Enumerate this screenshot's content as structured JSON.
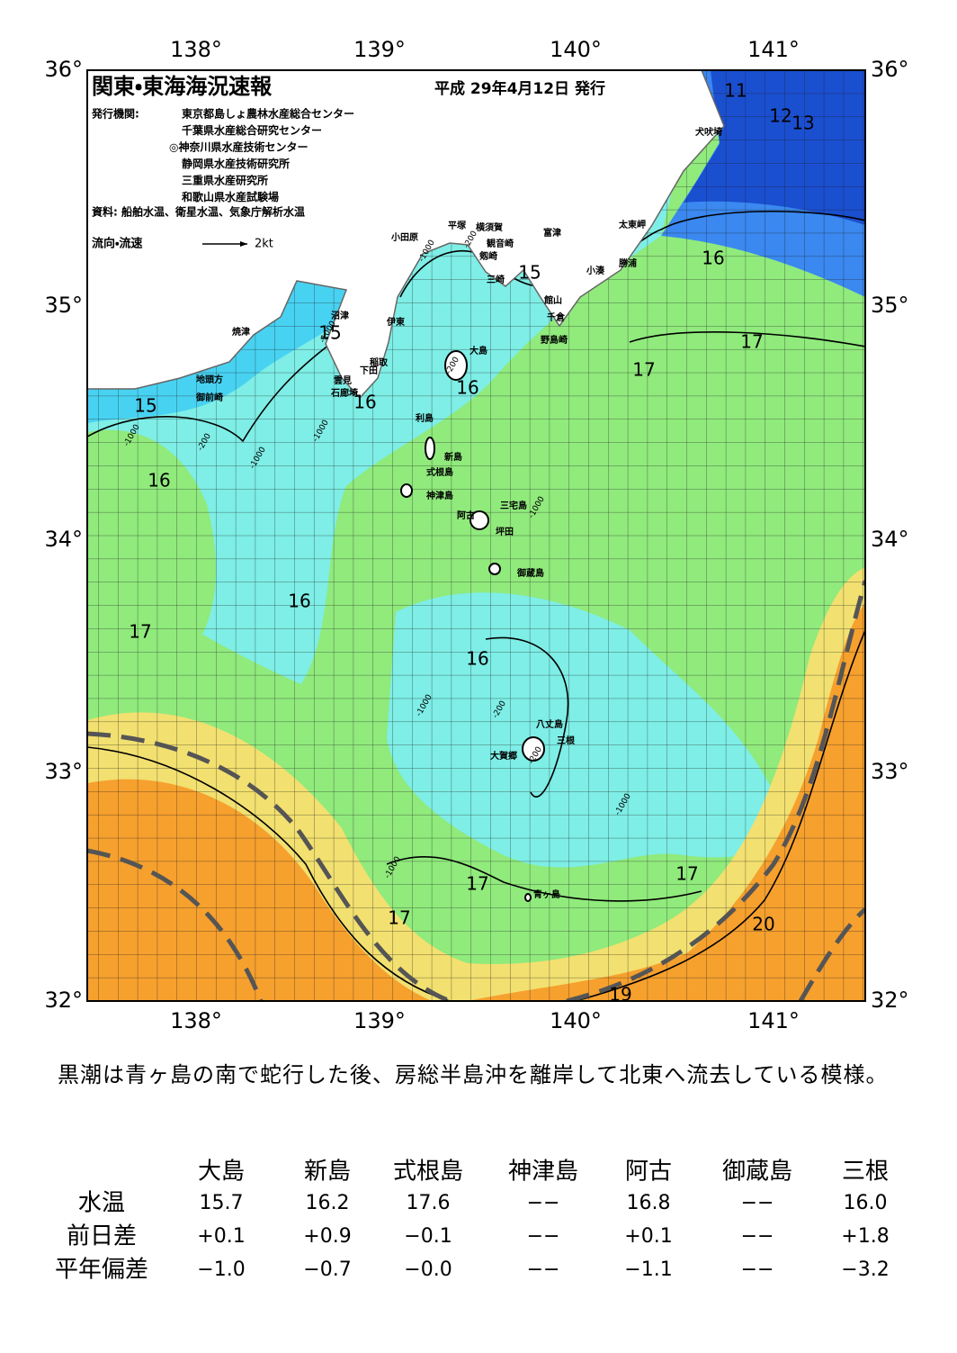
{
  "header": {
    "title": "関東・東海海況速報",
    "date": "平成 29年4月12日 発行",
    "publisher_label": "発行機関:",
    "publishers": [
      "東京都島しょ農林水産総合センター",
      "千葉県水産総合研究センター",
      "◎神奈川県水産技術センター",
      "静岡県水産技術研究所",
      "三重県水産研究所",
      "和歌山県水産試験場"
    ],
    "source": "資料: 船舶水温、衛星水温、気象庁解析水温",
    "legend": "流向・流速",
    "legend_speed": "2kt"
  },
  "map": {
    "lon_labels": [
      "138°",
      "139°",
      "140°",
      "141°"
    ],
    "lat_labels": [
      "36°",
      "35°",
      "34°",
      "33°",
      "32°"
    ],
    "places": [
      "犬吠埼",
      "太東岬",
      "勝浦",
      "小湊",
      "富津",
      "観音崎",
      "横須賀",
      "平塚",
      "剱崎",
      "三崎",
      "小田原",
      "館山",
      "千倉",
      "野島崎",
      "沼津",
      "伊東",
      "焼津",
      "大島",
      "稲取",
      "下田",
      "雲見",
      "石廊埼",
      "地頭方",
      "御前崎",
      "利島",
      "新島",
      "式根島",
      "神津島",
      "三宅島",
      "阿古",
      "坪田",
      "御蔵島",
      "八丈島",
      "三根",
      "大賀郷",
      "青ヶ島"
    ],
    "contour_labels": [
      "11",
      "12",
      "13",
      "16",
      "15",
      "15",
      "17",
      "17",
      "15",
      "16",
      "16",
      "16",
      "16",
      "17",
      "16",
      "17",
      "17",
      "17",
      "20",
      "19"
    ],
    "depth_labels": [
      "-200",
      "-1000",
      "-1000",
      "-200",
      "-1000",
      "-1000",
      "-200",
      "-1000",
      "-1000",
      "-1000",
      "-200",
      "-1000",
      "-1000",
      "-200"
    ]
  },
  "description": "黒潮は青ヶ島の南で蛇行した後、房総半島沖を離岸して北東へ流去している模様。",
  "table": {
    "columns": [
      "大島",
      "新島",
      "式根島",
      "神津島",
      "阿古",
      "御蔵島",
      "三根"
    ],
    "rows": [
      {
        "label": "水温",
        "cells": [
          "15.7",
          "16.2",
          "17.6",
          "−−",
          "16.8",
          "−−",
          "16.0"
        ]
      },
      {
        "label": "前日差",
        "cells": [
          "+0.1",
          "+0.9",
          "−0.1",
          "−−",
          "+0.1",
          "−−",
          "+1.8"
        ]
      },
      {
        "label": "平年偏差",
        "cells": [
          "−1.0",
          "−0.7",
          "−0.0",
          "−−",
          "−1.1",
          "−−",
          "−3.2"
        ]
      }
    ]
  }
}
